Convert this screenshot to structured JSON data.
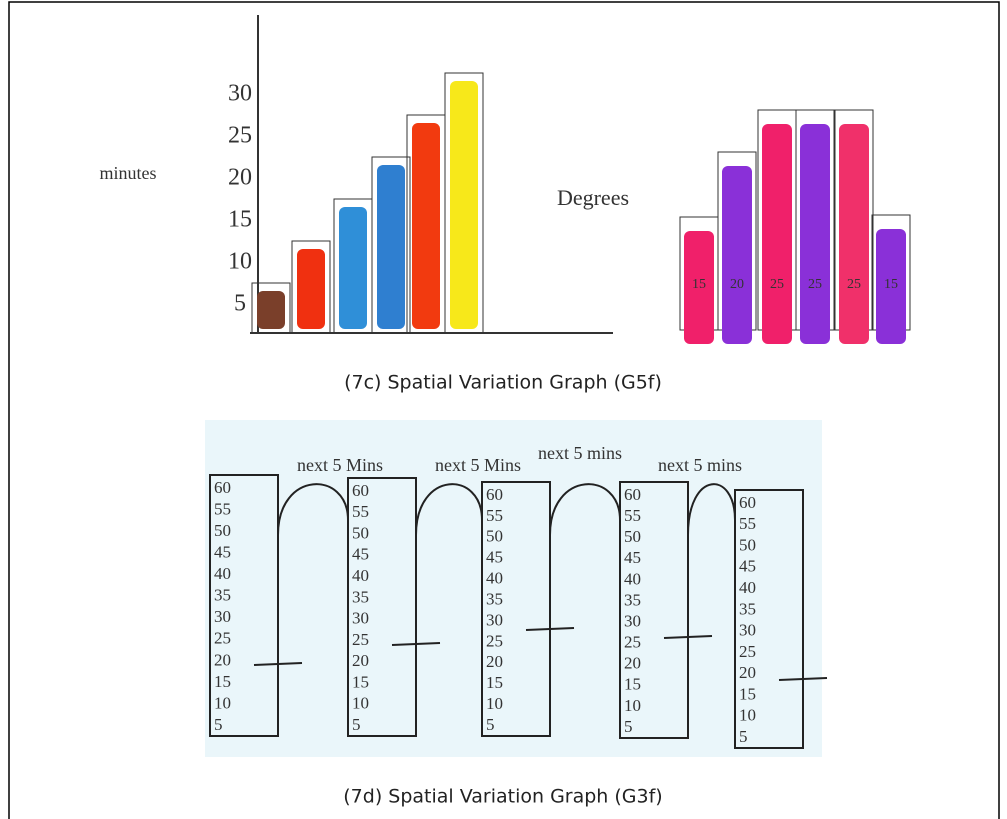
{
  "figures": [
    {
      "caption": "(7c) Spatial Variation Graph (G5f)",
      "left_graph": {
        "axis_label": "minutes",
        "ticks": [
          "5",
          "10",
          "15",
          "20",
          "25",
          "30"
        ]
      },
      "right_graph": {
        "axis_label": "Degrees",
        "bar_labels": [
          "15",
          "20",
          "25",
          "25",
          "25",
          "15"
        ]
      }
    },
    {
      "caption": "(7d) Spatial Variation Graph (G3f)",
      "column_scale": [
        "60",
        "55",
        "50",
        "45",
        "40",
        "35",
        "30",
        "25",
        "20",
        "15",
        "10",
        "5"
      ],
      "connector_labels": [
        "next 5 Mins",
        "next 5 Mins",
        "next 5 mins",
        "next 5 mins"
      ]
    }
  ]
}
